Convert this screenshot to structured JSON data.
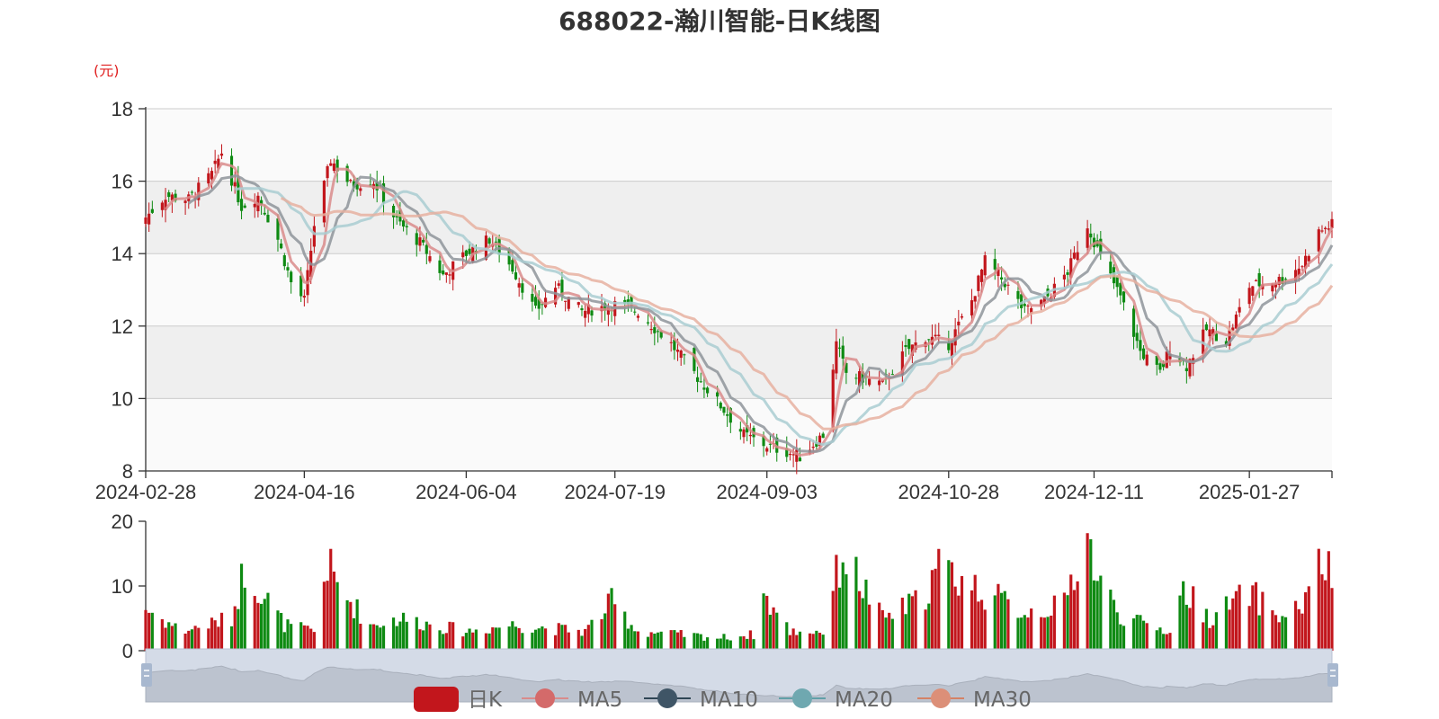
{
  "colors": {
    "up": "#c2161c",
    "down": "#0e8a12",
    "ma5": "#d98b8b",
    "ma10": "#8e949a",
    "ma20": "#a9cdd1",
    "ma30": "#e6b0a0",
    "band_light": "#fafafa",
    "band_dark": "#efefef",
    "grid": "#cccccc",
    "unit": "#e02020"
  },
  "chart_data": {
    "type": "candlestick",
    "title": "688022-瀚川智能-日K线图",
    "ylabel": "(元)",
    "ylim": [
      8,
      18
    ],
    "yticks": [
      "8",
      "10",
      "12",
      "14",
      "16",
      "18"
    ],
    "x_start": "2024-02-28",
    "x_end": "2025-02-21",
    "xticks": [
      "2024-02-28",
      "2024-04-16",
      "2024-06-04",
      "2024-07-19",
      "2024-09-03",
      "2024-10-28",
      "2024-12-11",
      "2025-01-27"
    ],
    "volume_ylim": [
      0,
      20
    ],
    "volume_yticks": [
      "0",
      "10",
      "20"
    ],
    "legend": [
      "日K",
      "MA5",
      "MA10",
      "MA20",
      "MA30"
    ],
    "grid": true,
    "legend_position": "bottom",
    "close_anchors": [
      [
        "2024-02-28",
        15.0
      ],
      [
        "2024-03-05",
        15.6
      ],
      [
        "2024-03-12",
        15.5
      ],
      [
        "2024-03-19",
        16.2
      ],
      [
        "2024-03-22",
        16.8
      ],
      [
        "2024-03-28",
        15.3
      ],
      [
        "2024-04-02",
        15.6
      ],
      [
        "2024-04-08",
        14.4
      ],
      [
        "2024-04-12",
        13.2
      ],
      [
        "2024-04-16",
        12.7
      ],
      [
        "2024-04-19",
        14.8
      ],
      [
        "2024-04-24",
        16.6
      ],
      [
        "2024-04-30",
        15.9
      ],
      [
        "2024-05-07",
        16.0
      ],
      [
        "2024-05-14",
        14.9
      ],
      [
        "2024-05-21",
        14.3
      ],
      [
        "2024-05-28",
        13.4
      ],
      [
        "2024-06-04",
        14.0
      ],
      [
        "2024-06-11",
        14.4
      ],
      [
        "2024-06-18",
        13.6
      ],
      [
        "2024-06-25",
        12.4
      ],
      [
        "2024-07-01",
        13.1
      ],
      [
        "2024-07-09",
        12.4
      ],
      [
        "2024-07-19",
        12.6
      ],
      [
        "2024-07-26",
        12.4
      ],
      [
        "2024-08-05",
        11.5
      ],
      [
        "2024-08-12",
        10.7
      ],
      [
        "2024-08-20",
        9.8
      ],
      [
        "2024-08-27",
        9.0
      ],
      [
        "2024-09-03",
        8.7
      ],
      [
        "2024-09-10",
        8.5
      ],
      [
        "2024-09-13",
        8.4
      ],
      [
        "2024-09-20",
        9.0
      ],
      [
        "2024-09-24",
        11.5
      ],
      [
        "2024-09-27",
        10.7
      ],
      [
        "2024-10-08",
        10.4
      ],
      [
        "2024-10-15",
        11.3
      ],
      [
        "2024-10-21",
        11.7
      ],
      [
        "2024-10-28",
        11.5
      ],
      [
        "2024-11-04",
        12.7
      ],
      [
        "2024-11-08",
        13.8
      ],
      [
        "2024-11-14",
        13.2
      ],
      [
        "2024-11-20",
        12.4
      ],
      [
        "2024-11-26",
        12.7
      ],
      [
        "2024-12-03",
        13.5
      ],
      [
        "2024-12-09",
        14.8
      ],
      [
        "2024-12-13",
        13.9
      ],
      [
        "2024-12-19",
        12.8
      ],
      [
        "2024-12-25",
        11.3
      ],
      [
        "2024-12-31",
        10.7
      ],
      [
        "2025-01-03",
        11.4
      ],
      [
        "2025-01-08",
        10.9
      ],
      [
        "2025-01-14",
        11.9
      ],
      [
        "2025-01-20",
        11.6
      ],
      [
        "2025-01-27",
        13.1
      ],
      [
        "2025-02-06",
        13.3
      ],
      [
        "2025-02-12",
        13.7
      ],
      [
        "2025-02-17",
        14.6
      ],
      [
        "2025-02-21",
        14.8
      ]
    ],
    "volume_anchors": [
      [
        "2024-02-28",
        6.5
      ],
      [
        "2024-03-10",
        3.0
      ],
      [
        "2024-03-25",
        5.0
      ],
      [
        "2024-03-29",
        13.0
      ],
      [
        "2024-04-02",
        10.0
      ],
      [
        "2024-04-10",
        4.0
      ],
      [
        "2024-04-19",
        3.0
      ],
      [
        "2024-04-23",
        13.5
      ],
      [
        "2024-04-26",
        10.0
      ],
      [
        "2024-05-06",
        4.0
      ],
      [
        "2024-05-15",
        5.0
      ],
      [
        "2024-06-04",
        3.0
      ],
      [
        "2024-06-18",
        4.0
      ],
      [
        "2024-07-10",
        3.0
      ],
      [
        "2024-07-18",
        7.5
      ],
      [
        "2024-07-26",
        3.0
      ],
      [
        "2024-08-20",
        2.0
      ],
      [
        "2024-08-30",
        2.5
      ],
      [
        "2024-09-02",
        8.5
      ],
      [
        "2024-09-10",
        3.0
      ],
      [
        "2024-09-20",
        3.0
      ],
      [
        "2024-09-24",
        11.5
      ],
      [
        "2024-09-26",
        15.0
      ],
      [
        "2024-10-08",
        5.0
      ],
      [
        "2024-10-20",
        8.0
      ],
      [
        "2024-10-25",
        13.0
      ],
      [
        "2024-11-08",
        9.0
      ],
      [
        "2024-11-20",
        6.0
      ],
      [
        "2024-12-02",
        7.0
      ],
      [
        "2024-12-06",
        14.0
      ],
      [
        "2024-12-09",
        18.0
      ],
      [
        "2024-12-12",
        11.0
      ],
      [
        "2024-12-20",
        5.0
      ],
      [
        "2025-01-03",
        3.0
      ],
      [
        "2025-01-07",
        9.5
      ],
      [
        "2025-01-15",
        5.0
      ],
      [
        "2025-01-27",
        9.0
      ],
      [
        "2025-02-06",
        5.0
      ],
      [
        "2025-02-14",
        8.0
      ],
      [
        "2025-02-17",
        14.5
      ],
      [
        "2025-02-21",
        11.0
      ]
    ]
  }
}
